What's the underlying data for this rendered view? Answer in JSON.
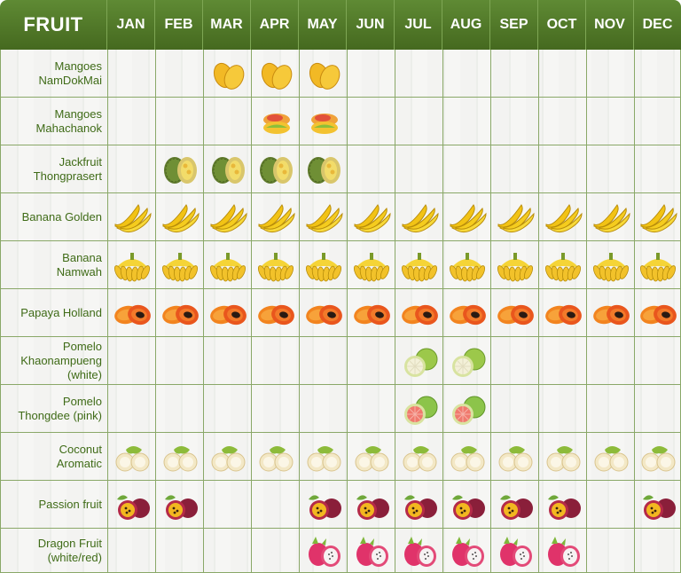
{
  "table": {
    "corner_label": "FRUIT",
    "months": [
      "JAN",
      "FEB",
      "MAR",
      "APR",
      "MAY",
      "JUN",
      "JUL",
      "AUG",
      "SEP",
      "OCT",
      "NOV",
      "DEC"
    ],
    "colors": {
      "header_green": "#4f7a28",
      "label_green": "#3f6b17",
      "grid_line": "#8aa868"
    },
    "rows": [
      {
        "label_lines": [
          "Mangoes",
          "NamDokMai"
        ],
        "icon": "mango-yellow-icon",
        "months": [
          0,
          0,
          1,
          1,
          1,
          0,
          0,
          0,
          0,
          0,
          0,
          0
        ]
      },
      {
        "label_lines": [
          "Mangoes",
          "Mahachanok"
        ],
        "icon": "mango-red-icon",
        "months": [
          0,
          0,
          0,
          1,
          1,
          0,
          0,
          0,
          0,
          0,
          0,
          0
        ]
      },
      {
        "label_lines": [
          "Jackfruit",
          "Thongprasert"
        ],
        "icon": "jackfruit-icon",
        "months": [
          0,
          1,
          1,
          1,
          1,
          0,
          0,
          0,
          0,
          0,
          0,
          0
        ]
      },
      {
        "label_lines": [
          "Banana Golden"
        ],
        "icon": "banana-icon",
        "months": [
          1,
          1,
          1,
          1,
          1,
          1,
          1,
          1,
          1,
          1,
          1,
          1
        ]
      },
      {
        "label_lines": [
          "Banana",
          "Namwah"
        ],
        "icon": "banana-bunch-icon",
        "months": [
          1,
          1,
          1,
          1,
          1,
          1,
          1,
          1,
          1,
          1,
          1,
          1
        ]
      },
      {
        "label_lines": [
          "Papaya Holland"
        ],
        "icon": "papaya-icon",
        "months": [
          1,
          1,
          1,
          1,
          1,
          1,
          1,
          1,
          1,
          1,
          1,
          1
        ]
      },
      {
        "label_lines": [
          "Pomelo",
          "Khaonampueng",
          "(white)"
        ],
        "icon": "pomelo-white-icon",
        "months": [
          0,
          0,
          0,
          0,
          0,
          0,
          1,
          1,
          0,
          0,
          0,
          0
        ]
      },
      {
        "label_lines": [
          "Pomelo",
          "Thongdee (pink)"
        ],
        "icon": "pomelo-pink-icon",
        "months": [
          0,
          0,
          0,
          0,
          0,
          0,
          1,
          1,
          0,
          0,
          0,
          0
        ]
      },
      {
        "label_lines": [
          "Coconut",
          "Aromatic"
        ],
        "icon": "coconut-icon",
        "months": [
          1,
          1,
          1,
          1,
          1,
          1,
          1,
          1,
          1,
          1,
          1,
          1
        ]
      },
      {
        "label_lines": [
          "Passion fruit"
        ],
        "icon": "passion-fruit-icon",
        "months": [
          1,
          1,
          0,
          0,
          1,
          1,
          1,
          1,
          1,
          1,
          0,
          1
        ]
      },
      {
        "label_lines": [
          "Dragon Fruit",
          "(white/red)"
        ],
        "icon": "dragon-fruit-icon",
        "months": [
          0,
          0,
          0,
          0,
          1,
          1,
          1,
          1,
          1,
          1,
          0,
          0
        ]
      }
    ]
  }
}
